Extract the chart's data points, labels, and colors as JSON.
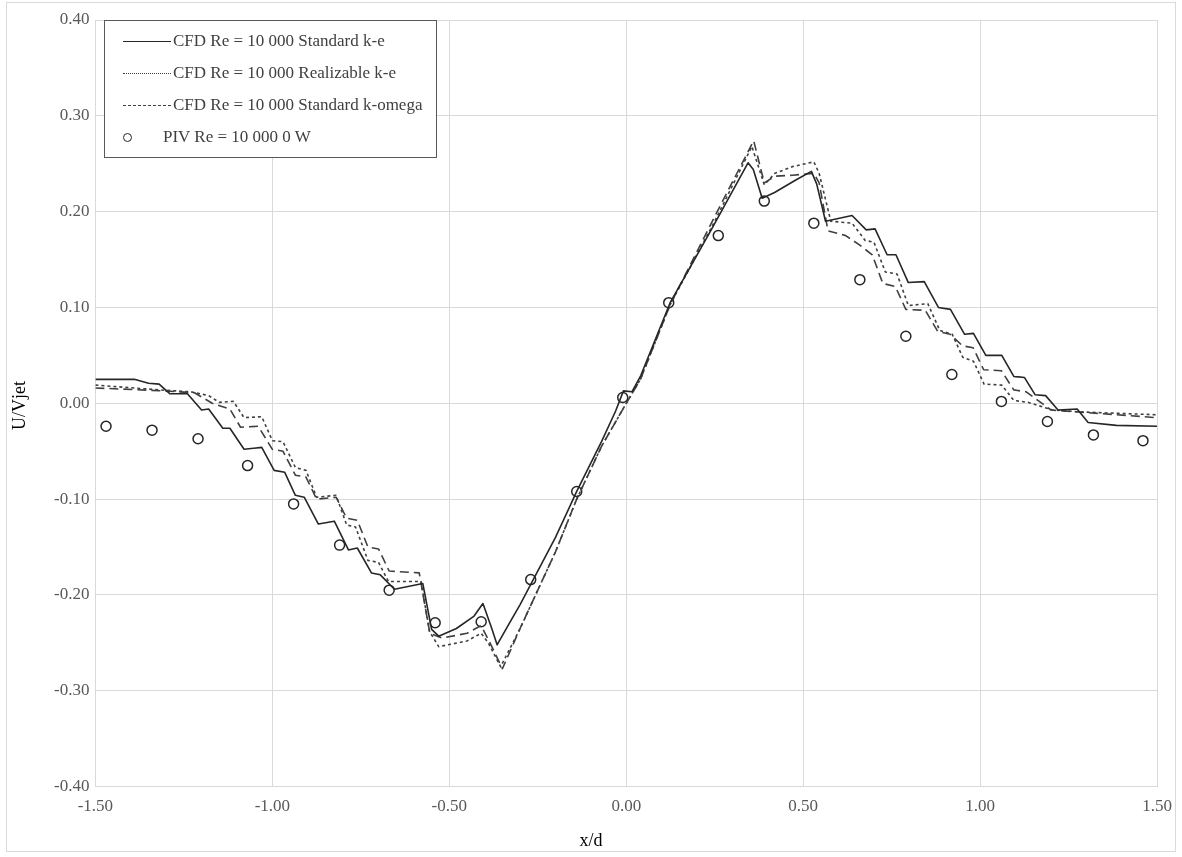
{
  "chart_data": {
    "type": "line",
    "xlabel": "x/d",
    "ylabel": "U/Vjet",
    "xlim": [
      -1.5,
      1.5
    ],
    "ylim": [
      -0.4,
      0.4
    ],
    "xticks": [
      {
        "value": -1.5,
        "label": "-1.50"
      },
      {
        "value": -1,
        "label": "-1.00"
      },
      {
        "value": -0.5,
        "label": "-0.50"
      },
      {
        "value": 0,
        "label": "0.00"
      },
      {
        "value": 0.5,
        "label": "0.50"
      },
      {
        "value": 1,
        "label": "1.00"
      },
      {
        "value": 1.5,
        "label": "1.50"
      }
    ],
    "yticks": [
      {
        "value": -0.4,
        "label": "-0.40"
      },
      {
        "value": -0.3,
        "label": "-0.30"
      },
      {
        "value": -0.2,
        "label": "-0.20"
      },
      {
        "value": -0.1,
        "label": "-0.10"
      },
      {
        "value": 0,
        "label": "0.00"
      },
      {
        "value": 0.1,
        "label": "0.10"
      },
      {
        "value": 0.2,
        "label": "0.20"
      },
      {
        "value": 0.3,
        "label": "0.30"
      },
      {
        "value": 0.4,
        "label": "0.40"
      }
    ],
    "grid": true,
    "legend": "top left",
    "series": [
      {
        "name": "CFD Re = 10 000 Standard k-e",
        "type": "line",
        "line_style": "solid",
        "marker": "none",
        "color": "#262626",
        "x": [
          -1.5,
          -1.39,
          -1.35,
          -1.32,
          -1.29,
          -1.24,
          -1.2,
          -1.18,
          -1.14,
          -1.12,
          -1.08,
          -1.03,
          -0.995,
          -0.965,
          -0.935,
          -0.91,
          -0.87,
          -0.825,
          -0.785,
          -0.76,
          -0.72,
          -0.695,
          -0.655,
          -0.575,
          -0.55,
          -0.53,
          -0.48,
          -0.43,
          -0.405,
          -0.38,
          -0.365,
          -0.3,
          -0.2,
          -0.14,
          -0.07,
          -0.03,
          -0.008,
          0.016,
          0.041,
          0.124,
          0.24,
          0.344,
          0.359,
          0.384,
          0.419,
          0.479,
          0.523,
          0.538,
          0.563,
          0.638,
          0.678,
          0.703,
          0.737,
          0.762,
          0.797,
          0.842,
          0.882,
          0.916,
          0.956,
          0.981,
          1.016,
          1.061,
          1.095,
          1.125,
          1.155,
          1.185,
          1.22,
          1.274,
          1.305,
          1.385,
          1.5
        ],
        "values": [
          0.025,
          0.025,
          0.021,
          0.02,
          0.01,
          0.01,
          -0.007,
          -0.006,
          -0.026,
          -0.026,
          -0.048,
          -0.046,
          -0.07,
          -0.072,
          -0.096,
          -0.098,
          -0.126,
          -0.123,
          -0.153,
          -0.151,
          -0.177,
          -0.179,
          -0.194,
          -0.188,
          -0.236,
          -0.243,
          -0.235,
          -0.222,
          -0.209,
          -0.235,
          -0.252,
          -0.21,
          -0.14,
          -0.092,
          -0.04,
          -0.008,
          0.013,
          0.012,
          0.029,
          0.105,
          0.181,
          0.251,
          0.244,
          0.214,
          0.22,
          0.233,
          0.242,
          0.229,
          0.19,
          0.196,
          0.181,
          0.182,
          0.155,
          0.155,
          0.126,
          0.127,
          0.1,
          0.098,
          0.072,
          0.073,
          0.05,
          0.05,
          0.028,
          0.027,
          0.009,
          0.008,
          -0.007,
          -0.006,
          -0.02,
          -0.023,
          -0.024
        ]
      },
      {
        "name": "CFD Re = 10 000 Realizable k-e",
        "type": "line",
        "line_style": "dotted",
        "marker": "none",
        "color": "#404040",
        "x": [
          -1.5,
          -1.32,
          -1.23,
          -1.18,
          -1.15,
          -1.11,
          -1.08,
          -1.03,
          -1.0,
          -0.97,
          -0.935,
          -0.905,
          -0.875,
          -0.82,
          -0.79,
          -0.765,
          -0.73,
          -0.7,
          -0.672,
          -0.58,
          -0.556,
          -0.53,
          -0.45,
          -0.41,
          -0.39,
          -0.355,
          -0.3,
          -0.2,
          -0.14,
          -0.07,
          0,
          0.04,
          0.124,
          0.25,
          0.355,
          0.39,
          0.42,
          0.47,
          0.53,
          0.545,
          0.578,
          0.638,
          0.675,
          0.7,
          0.732,
          0.765,
          0.797,
          0.852,
          0.886,
          0.921,
          0.951,
          0.981,
          1.011,
          1.061,
          1.095,
          1.135,
          1.205,
          1.285,
          1.5
        ],
        "values": [
          0.019,
          0.014,
          0.012,
          0.008,
          0.001,
          0.002,
          -0.015,
          -0.014,
          -0.039,
          -0.04,
          -0.067,
          -0.07,
          -0.098,
          -0.096,
          -0.127,
          -0.129,
          -0.164,
          -0.166,
          -0.186,
          -0.186,
          -0.238,
          -0.254,
          -0.248,
          -0.24,
          -0.25,
          -0.275,
          -0.235,
          -0.155,
          -0.1,
          -0.045,
          0,
          0.025,
          0.103,
          0.19,
          0.268,
          0.228,
          0.24,
          0.247,
          0.252,
          0.24,
          0.19,
          0.188,
          0.17,
          0.168,
          0.137,
          0.135,
          0.102,
          0.104,
          0.076,
          0.072,
          0.048,
          0.044,
          0.02,
          0.019,
          0.003,
          0.001,
          -0.007,
          -0.009,
          -0.012
        ]
      },
      {
        "name": "CFD Re = 10 000 Standard k-omega",
        "type": "line",
        "line_style": "dashed",
        "marker": "none",
        "color": "#404040",
        "x": [
          -1.5,
          -1.31,
          -1.22,
          -1.17,
          -1.12,
          -1.09,
          -1.04,
          -1.0,
          -0.97,
          -0.935,
          -0.905,
          -0.875,
          -0.82,
          -0.79,
          -0.76,
          -0.73,
          -0.7,
          -0.67,
          -0.585,
          -0.555,
          -0.52,
          -0.45,
          -0.41,
          -0.385,
          -0.35,
          -0.3,
          -0.2,
          -0.14,
          -0.07,
          0,
          0.04,
          0.124,
          0.25,
          0.36,
          0.39,
          0.42,
          0.47,
          0.53,
          0.545,
          0.57,
          0.62,
          0.66,
          0.695,
          0.725,
          0.76,
          0.79,
          0.845,
          0.88,
          0.915,
          0.95,
          0.98,
          1.01,
          1.06,
          1.095,
          1.13,
          1.2,
          1.5
        ],
        "values": [
          0.016,
          0.013,
          0.011,
          0,
          -0.006,
          -0.025,
          -0.024,
          -0.048,
          -0.05,
          -0.075,
          -0.077,
          -0.1,
          -0.098,
          -0.12,
          -0.122,
          -0.15,
          -0.152,
          -0.175,
          -0.177,
          -0.24,
          -0.245,
          -0.24,
          -0.232,
          -0.25,
          -0.277,
          -0.235,
          -0.155,
          -0.1,
          -0.045,
          0,
          0.025,
          0.103,
          0.195,
          0.274,
          0.23,
          0.237,
          0.238,
          0.24,
          0.23,
          0.18,
          0.175,
          0.165,
          0.155,
          0.125,
          0.122,
          0.098,
          0.097,
          0.075,
          0.072,
          0.06,
          0.058,
          0.035,
          0.034,
          0.014,
          0.012,
          -0.007,
          -0.015
        ]
      },
      {
        "name": "PIV Re = 10 000 0 W",
        "type": "scatter",
        "marker": "circle",
        "color": "#262626",
        "x": [
          -1.47,
          -1.34,
          -1.21,
          -1.07,
          -0.94,
          -0.81,
          -0.67,
          -0.54,
          -0.41,
          -0.27,
          -0.14,
          -0.01,
          0.12,
          0.26,
          0.39,
          0.53,
          0.66,
          0.79,
          0.92,
          1.06,
          1.19,
          1.32,
          1.46
        ],
        "values": [
          -0.024,
          -0.028,
          -0.037,
          -0.065,
          -0.105,
          -0.148,
          -0.195,
          -0.229,
          -0.228,
          -0.184,
          -0.092,
          0.006,
          0.105,
          0.175,
          0.211,
          0.188,
          0.129,
          0.07,
          0.03,
          0.002,
          -0.019,
          -0.033,
          -0.039
        ]
      }
    ]
  }
}
